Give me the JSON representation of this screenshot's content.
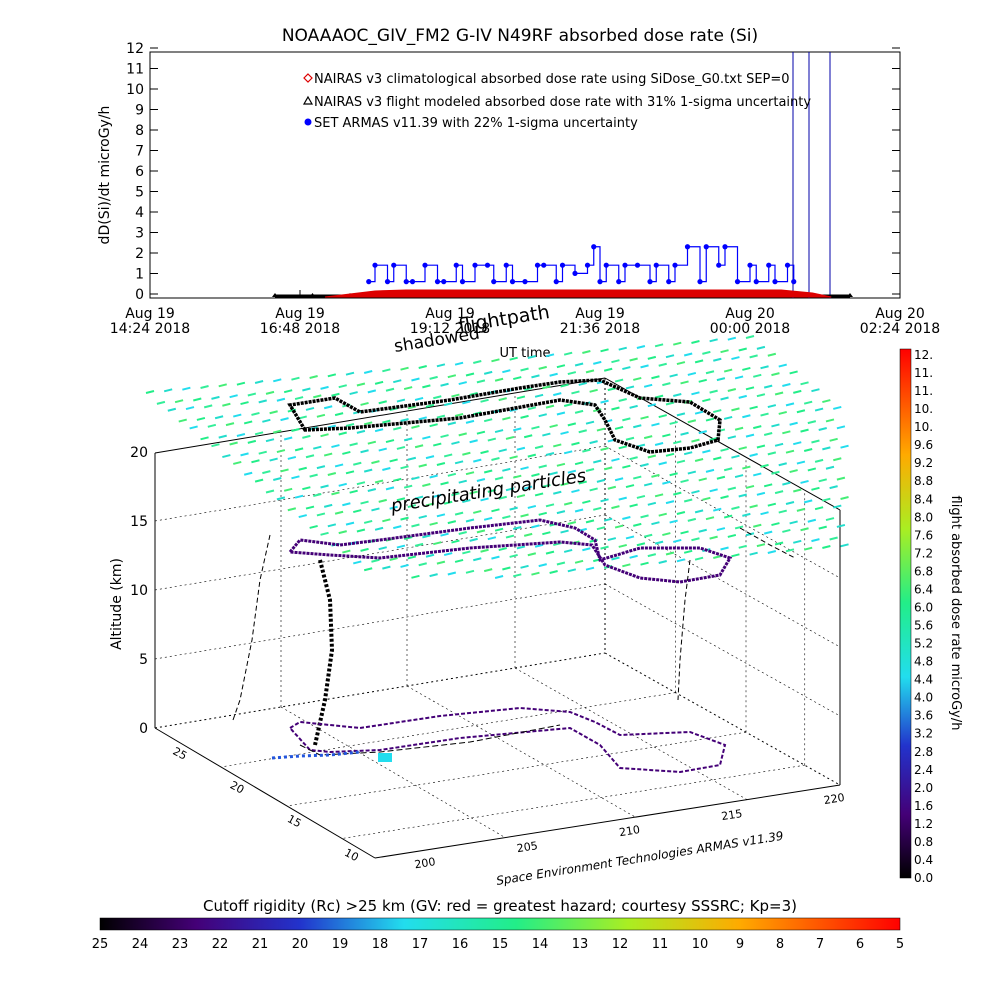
{
  "chart_data": [
    {
      "type": "scatter",
      "title": "NOAAAOC_GIV_FM2 G-IV    N49RF   absorbed dose rate (Si)",
      "ylabel": "dD(Si)/dt microGy/h",
      "xlabel": "UT time",
      "ylim": [
        0,
        12
      ],
      "yticks": [
        "0",
        "1",
        "2",
        "3",
        "4",
        "5",
        "6",
        "7",
        "8",
        "9",
        "10",
        "11",
        "12"
      ],
      "xticks": [
        {
          "date": "Aug 19",
          "time": "14:24 2018"
        },
        {
          "date": "Aug 19",
          "time": "16:48 2018"
        },
        {
          "date": "Aug 19",
          "time": "19:12 2018"
        },
        {
          "date": "Aug 19",
          "time": "21:36 2018"
        },
        {
          "date": "Aug 20",
          "time": "00:00 2018"
        },
        {
          "date": "Aug 20",
          "time": "02:24 2018"
        }
      ],
      "xlim_hours": [
        14.4,
        26.4
      ],
      "legend": {
        "placement": "top-center",
        "entries": [
          {
            "text": "NAIRAS v3 climatological absorbed dose rate using SiDose_G0.txt SEP=0",
            "marker": "diamond",
            "color": "#dd0000"
          },
          {
            "text": "NAIRAS v3 flight modeled absorbed dose rate with 31% 1-sigma uncertainty",
            "marker": "triangle",
            "color": "#000000"
          },
          {
            "text": "SET ARMAS v11.39 with 22% 1-sigma uncertainty",
            "marker": "circle",
            "color": "#0000ff"
          }
        ]
      },
      "series": [
        {
          "name": "SET ARMAS v11.39 with 22% 1-sigma uncertainty",
          "x": [
            17.9,
            18.0,
            18.2,
            18.3,
            18.5,
            18.6,
            18.8,
            19.0,
            19.1,
            19.3,
            19.4,
            19.6,
            19.8,
            19.9,
            20.1,
            20.2,
            20.4,
            20.6,
            20.7,
            20.9,
            21.0,
            21.2,
            21.4,
            21.5,
            21.6,
            21.7,
            21.9,
            22.0,
            22.2,
            22.4,
            22.5,
            22.7,
            22.8,
            23.0,
            23.2,
            23.3,
            23.5,
            23.6,
            23.8,
            24.0,
            24.1,
            24.3,
            24.4,
            24.6,
            24.7
          ],
          "y": [
            0.8,
            1.6,
            0.8,
            1.6,
            0.8,
            0.8,
            1.6,
            0.8,
            0.8,
            1.6,
            0.8,
            1.6,
            1.6,
            0.8,
            1.6,
            0.8,
            0.8,
            1.6,
            1.6,
            0.8,
            1.6,
            1.2,
            1.6,
            2.5,
            0.8,
            1.6,
            0.8,
            1.6,
            1.6,
            0.8,
            1.6,
            0.8,
            1.6,
            2.5,
            0.8,
            2.5,
            1.6,
            2.5,
            0.8,
            1.6,
            0.8,
            1.6,
            0.8,
            1.6,
            0.8
          ]
        },
        {
          "name": "NAIRAS v3 climatological absorbed dose rate using SiDose_G0.txt SEP=0",
          "x": [
            17.2,
            17.6,
            18.0,
            18.5,
            19.0,
            19.5,
            20.0,
            20.5,
            21.0,
            21.5,
            22.0,
            22.5,
            23.0,
            23.5,
            24.0,
            24.5,
            25.0,
            25.3
          ],
          "y": [
            0.0,
            0.15,
            0.3,
            0.35,
            0.35,
            0.35,
            0.35,
            0.35,
            0.35,
            0.35,
            0.35,
            0.35,
            0.35,
            0.35,
            0.35,
            0.35,
            0.2,
            0.0
          ]
        },
        {
          "name": "NAIRAS v3 flight modeled absorbed dose rate with 31% 1-sigma uncertainty",
          "x": [
            16.4,
            17.0,
            17.6,
            18.0,
            19.0,
            20.0,
            21.0,
            22.0,
            23.0,
            24.0,
            25.0,
            25.6
          ],
          "y": [
            0,
            0,
            0,
            0,
            0,
            0,
            0,
            0,
            0,
            0,
            0,
            0
          ]
        }
      ],
      "vertical_lines_color": "#0000aa"
    },
    {
      "type": "scatter",
      "title": "flightpath",
      "subtitle": "shadowed",
      "annotation": "precipitating particles",
      "zlabel": "Altitude (km)",
      "zticks": [
        "0",
        "5",
        "10",
        "15",
        "20"
      ],
      "lat_ticks": [
        "10",
        "15",
        "20",
        "25"
      ],
      "lon_ticks": [
        "200",
        "205",
        "210",
        "215",
        "220"
      ],
      "credit": "Space Environment Technologies ARMAS v11.39",
      "color_levels_rgb": [
        "#000000",
        "#440077",
        "#2233cc",
        "#22ddee",
        "#22ee88",
        "#aaee22",
        "#ffaa00",
        "#ff0000"
      ],
      "colorbar": {
        "label": "flight absorbed dose rate microGy/h",
        "ticks": [
          "12.",
          "11.",
          "11.",
          "10.",
          "10.",
          "9.6",
          "9.2",
          "8.8",
          "8.4",
          "8.0",
          "7.6",
          "7.2",
          "6.8",
          "6.4",
          "6.0",
          "5.6",
          "5.2",
          "4.8",
          "4.4",
          "4.0",
          "3.6",
          "3.2",
          "2.8",
          "2.4",
          "2.0",
          "1.6",
          "1.2",
          "0.8",
          "0.4",
          "0.0"
        ]
      },
      "rigidity_bar": {
        "label": "Cutoff rigidity (Rc) >25 km (GV: red = greatest hazard; courtesy SSSRC; Kp=3)",
        "ticks": [
          "25",
          "24",
          "23",
          "22",
          "21",
          "20",
          "19",
          "18",
          "17",
          "16",
          "15",
          "14",
          "13",
          "12",
          "11",
          "10",
          "9",
          "8",
          "7",
          "6",
          "5"
        ]
      }
    }
  ]
}
